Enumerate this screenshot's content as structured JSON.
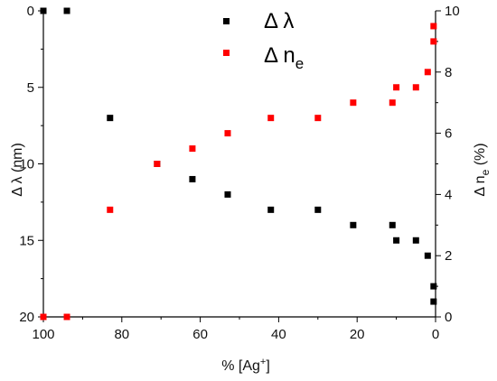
{
  "chart_data": {
    "type": "scatter",
    "xlabel": "% [Ag",
    "xlabel_sup": "+",
    "xlabel_end": "]",
    "ylabel_left": "Δ λ (nm)",
    "ylabel_right": "Δ n",
    "ylabel_right_sub": "e",
    "ylabel_right_unit": " (%)",
    "x_reversed": true,
    "xlim": [
      100,
      0
    ],
    "xticks": [
      "100",
      "80",
      "60",
      "40",
      "20",
      "0"
    ],
    "ylim_left": [
      0,
      20
    ],
    "y_left_inverted": true,
    "yticks_left": [
      "0",
      "5",
      "10",
      "15",
      "20"
    ],
    "ylim_right": [
      0,
      10
    ],
    "yticks_right": [
      "0",
      "2",
      "4",
      "6",
      "8",
      "10"
    ],
    "legend_position": "top-right",
    "series": [
      {
        "name": "Δ λ",
        "axis": "left",
        "color": "#000000",
        "points": [
          [
            100,
            0
          ],
          [
            94,
            0
          ],
          [
            83,
            7
          ],
          [
            71,
            10
          ],
          [
            62,
            11
          ],
          [
            53,
            12
          ],
          [
            42,
            13
          ],
          [
            30,
            13
          ],
          [
            21,
            14
          ],
          [
            11,
            14
          ],
          [
            10,
            15
          ],
          [
            5,
            15
          ],
          [
            2,
            16
          ],
          [
            0.5,
            18
          ],
          [
            0.5,
            19
          ]
        ]
      },
      {
        "name": "Δ n",
        "name_sub": "e",
        "axis": "right",
        "color": "#ff0000",
        "points": [
          [
            100,
            0
          ],
          [
            94,
            0
          ],
          [
            83,
            3.5
          ],
          [
            71,
            5
          ],
          [
            62,
            5.5
          ],
          [
            53,
            6
          ],
          [
            42,
            6.5
          ],
          [
            30,
            6.5
          ],
          [
            21,
            7
          ],
          [
            11,
            7
          ],
          [
            10,
            7.5
          ],
          [
            5,
            7.5
          ],
          [
            2,
            8
          ],
          [
            0.5,
            9
          ],
          [
            0.5,
            9.5
          ]
        ]
      }
    ]
  }
}
